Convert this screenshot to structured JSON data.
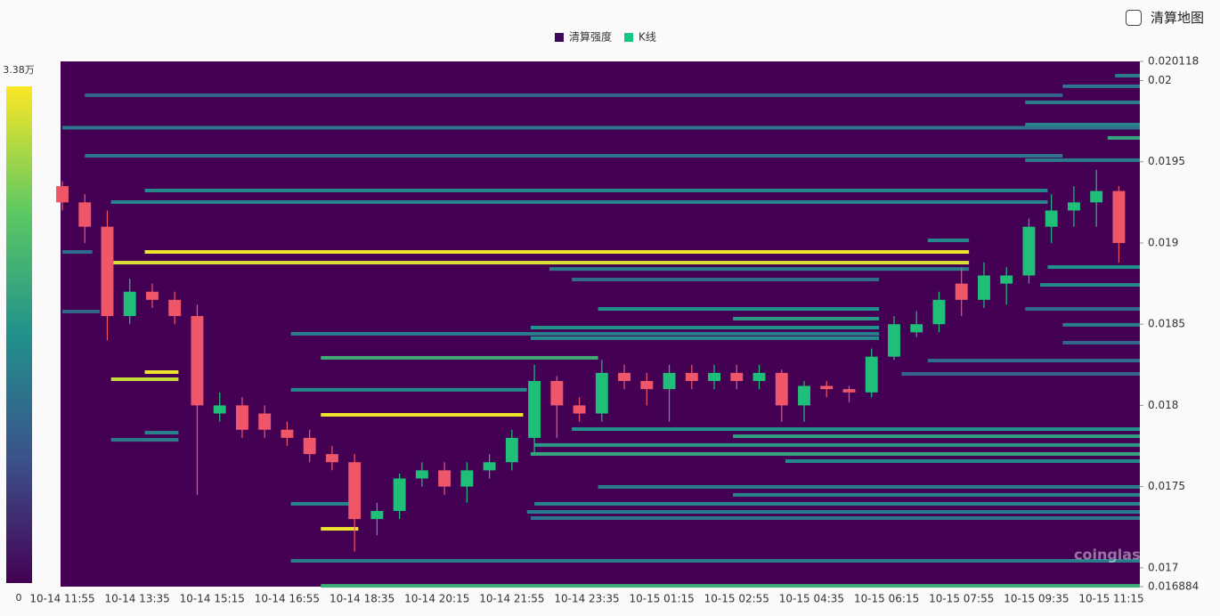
{
  "toggle_label": "清算地图",
  "watermark": "coinglass",
  "chart_data": {
    "type": "liquidation-heatmap",
    "legend": [
      {
        "name": "清算强度",
        "color": "#3d0a5a"
      },
      {
        "name": "K线",
        "color": "#16c784"
      }
    ],
    "up_color": "#1fbf7a",
    "down_color": "#f0566a",
    "colormap": [
      "#440154",
      "#3b528b",
      "#21918c",
      "#5ec962",
      "#fde725"
    ],
    "clim": [
      0,
      33800
    ],
    "cticks": [
      0,
      {
        "value": 33800,
        "label": "3.38万"
      }
    ],
    "ylim": [
      0.016884,
      0.020118
    ],
    "yticks": [
      0.016884,
      0.017,
      0.0175,
      0.018,
      0.0185,
      0.019,
      0.0195,
      0.02,
      0.020118
    ],
    "xticks": [
      "10-14 11:55",
      "10-14 13:35",
      "10-14 15:15",
      "10-14 16:55",
      "10-14 18:35",
      "10-14 20:15",
      "10-14 21:55",
      "10-14 23:35",
      "10-15 01:15",
      "10-15 02:55",
      "10-15 04:35",
      "10-15 06:15",
      "10-15 07:55",
      "10-15 09:35",
      "10-15 11:15"
    ],
    "x": [
      "10-14 11:55",
      "10-14 12:25",
      "10-14 12:55",
      "10-14 13:25",
      "10-14 13:55",
      "10-14 14:25",
      "10-14 14:55",
      "10-14 15:25",
      "10-14 15:55",
      "10-14 16:25",
      "10-14 16:55",
      "10-14 17:25",
      "10-14 17:55",
      "10-14 18:25",
      "10-14 18:55",
      "10-14 19:25",
      "10-14 19:55",
      "10-14 20:25",
      "10-14 20:55",
      "10-14 21:25",
      "10-14 21:55",
      "10-14 22:25",
      "10-14 22:55",
      "10-14 23:25",
      "10-14 23:55",
      "10-15 00:25",
      "10-15 00:55",
      "10-15 01:25",
      "10-15 01:55",
      "10-15 02:25",
      "10-15 02:55",
      "10-15 03:25",
      "10-15 03:55",
      "10-15 04:25",
      "10-15 04:55",
      "10-15 05:25",
      "10-15 05:55",
      "10-15 06:25",
      "10-15 06:55",
      "10-15 07:25",
      "10-15 07:55",
      "10-15 08:25",
      "10-15 08:55",
      "10-15 09:25",
      "10-15 09:55",
      "10-15 10:25",
      "10-15 10:55",
      "10-15 11:25"
    ],
    "open": [
      0.01935,
      0.01925,
      0.0191,
      0.01855,
      0.0187,
      0.01865,
      0.01855,
      0.01795,
      0.018,
      0.01795,
      0.01785,
      0.0178,
      0.0177,
      0.01765,
      0.0173,
      0.01735,
      0.01755,
      0.0176,
      0.0175,
      0.0176,
      0.01765,
      0.0178,
      0.01815,
      0.018,
      0.01795,
      0.0182,
      0.01815,
      0.0181,
      0.0182,
      0.01815,
      0.0182,
      0.01815,
      0.0182,
      0.018,
      0.01812,
      0.0181,
      0.01808,
      0.0183,
      0.01845,
      0.0185,
      0.01875,
      0.01865,
      0.01875,
      0.0188,
      0.0191,
      0.0192,
      0.01925,
      0.01932
    ],
    "high": [
      0.01938,
      0.0193,
      0.0192,
      0.01878,
      0.01875,
      0.0187,
      0.01862,
      0.01808,
      0.01805,
      0.018,
      0.0179,
      0.01785,
      0.01775,
      0.0177,
      0.0174,
      0.01758,
      0.01765,
      0.01765,
      0.01765,
      0.0177,
      0.01785,
      0.01825,
      0.01818,
      0.01805,
      0.01828,
      0.01825,
      0.0182,
      0.01825,
      0.01825,
      0.01825,
      0.01825,
      0.01825,
      0.01822,
      0.01815,
      0.01815,
      0.01812,
      0.01835,
      0.01855,
      0.01858,
      0.0187,
      0.01885,
      0.01888,
      0.01885,
      0.01915,
      0.0193,
      0.01935,
      0.01945,
      0.01935
    ],
    "low": [
      0.0192,
      0.019,
      0.0184,
      0.0185,
      0.0186,
      0.0185,
      0.01745,
      0.0179,
      0.0178,
      0.0178,
      0.01775,
      0.01765,
      0.0176,
      0.0171,
      0.0172,
      0.0173,
      0.0175,
      0.01745,
      0.0174,
      0.01755,
      0.0176,
      0.0177,
      0.0178,
      0.0179,
      0.0179,
      0.0181,
      0.018,
      0.0179,
      0.0181,
      0.0181,
      0.0181,
      0.0181,
      0.0179,
      0.0179,
      0.01805,
      0.01802,
      0.01805,
      0.01828,
      0.01842,
      0.01845,
      0.01855,
      0.0186,
      0.01862,
      0.01875,
      0.019,
      0.0191,
      0.0191,
      0.01888
    ],
    "close": [
      0.01925,
      0.0191,
      0.01855,
      0.0187,
      0.01865,
      0.01855,
      0.018,
      0.018,
      0.01785,
      0.01785,
      0.0178,
      0.0177,
      0.01765,
      0.0173,
      0.01735,
      0.01755,
      0.0176,
      0.0175,
      0.0176,
      0.01765,
      0.0178,
      0.01815,
      0.018,
      0.01795,
      0.0182,
      0.01815,
      0.0181,
      0.0182,
      0.01815,
      0.0182,
      0.01815,
      0.0182,
      0.018,
      0.01812,
      0.0181,
      0.01808,
      0.0183,
      0.0185,
      0.0185,
      0.01865,
      0.01865,
      0.0188,
      0.0188,
      0.0191,
      0.0192,
      0.01925,
      0.01932,
      0.019
    ],
    "bands": [
      {
        "price": 0.01971,
        "start": "10-14 11:55",
        "intensity": 13000
      },
      {
        "price": 0.01991,
        "start": "10-14 12:25",
        "end": "10-15 10:10",
        "intensity": 11000
      },
      {
        "price": 0.019537,
        "start": "10-14 12:25",
        "end": "10-15 10:10",
        "intensity": 13000
      },
      {
        "price": 0.019323,
        "start": "10-14 13:45",
        "end": "10-15 09:50",
        "intensity": 16000
      },
      {
        "price": 0.019252,
        "start": "10-14 13:00",
        "end": "10-15 09:50",
        "intensity": 15000
      },
      {
        "price": 0.018945,
        "start": "10-14 13:45",
        "end": "10-15 08:05",
        "intensity": 33000
      },
      {
        "price": 0.018879,
        "start": "10-14 13:00",
        "end": "10-15 08:05",
        "intensity": 32000
      },
      {
        "price": 0.018945,
        "start": "10-14 11:55",
        "end": "10-14 12:35",
        "intensity": 12000
      },
      {
        "price": 0.018578,
        "start": "10-14 11:55",
        "end": "10-14 12:45",
        "intensity": 11000
      },
      {
        "price": 0.018205,
        "start": "10-14 13:45",
        "end": "10-14 14:30",
        "intensity": 33000
      },
      {
        "price": 0.018161,
        "start": "10-14 13:00",
        "end": "10-14 14:30",
        "intensity": 31000
      },
      {
        "price": 0.017832,
        "start": "10-14 13:45",
        "end": "10-14 14:30",
        "intensity": 15000
      },
      {
        "price": 0.017788,
        "start": "10-14 13:00",
        "end": "10-14 14:30",
        "intensity": 14000
      },
      {
        "price": 0.017942,
        "start": "10-14 17:40",
        "end": "10-14 22:10",
        "intensity": 33000
      },
      {
        "price": 0.01724,
        "start": "10-14 17:40",
        "end": "10-14 18:30",
        "intensity": 33000
      },
      {
        "price": 0.018293,
        "start": "10-14 17:40",
        "end": "10-14 23:50",
        "intensity": 21000
      },
      {
        "price": 0.018096,
        "start": "10-14 17:00",
        "end": "10-14 22:15",
        "intensity": 16000
      },
      {
        "price": 0.017394,
        "start": "10-14 17:00",
        "end": "10-14 18:30",
        "intensity": 15000
      },
      {
        "price": 0.017043,
        "start": "10-14 17:00",
        "intensity": 14000
      },
      {
        "price": 0.016889,
        "start": "10-14 17:40",
        "intensity": 21000
      },
      {
        "price": 0.018441,
        "start": "10-14 17:00",
        "end": "10-15 06:05",
        "intensity": 14000
      },
      {
        "price": 0.018594,
        "start": "10-14 23:50",
        "end": "10-15 06:05",
        "intensity": 17000
      },
      {
        "price": 0.018534,
        "start": "10-15 02:50",
        "end": "10-15 06:05",
        "intensity": 18000
      },
      {
        "price": 0.018479,
        "start": "10-14 22:20",
        "end": "10-15 06:05",
        "intensity": 17000
      },
      {
        "price": 0.018414,
        "start": "10-14 22:20",
        "end": "10-15 06:05",
        "intensity": 16000
      },
      {
        "price": 0.01884,
        "start": "10-14 22:45",
        "end": "10-15 08:05",
        "intensity": 14000
      },
      {
        "price": 0.018775,
        "start": "10-14 23:15",
        "end": "10-15 06:05",
        "intensity": 12000
      },
      {
        "price": 0.017854,
        "start": "10-14 23:15",
        "intensity": 17000
      },
      {
        "price": 0.01781,
        "start": "10-15 02:50",
        "intensity": 19000
      },
      {
        "price": 0.017756,
        "start": "10-14 22:25",
        "intensity": 18000
      },
      {
        "price": 0.017701,
        "start": "10-14 22:20",
        "intensity": 20000
      },
      {
        "price": 0.017657,
        "start": "10-15 04:00",
        "intensity": 16000
      },
      {
        "price": 0.017498,
        "start": "10-14 23:50",
        "intensity": 14000
      },
      {
        "price": 0.017449,
        "start": "10-15 02:50",
        "intensity": 15000
      },
      {
        "price": 0.017394,
        "start": "10-14 22:25",
        "intensity": 15000
      },
      {
        "price": 0.017344,
        "start": "10-14 22:15",
        "intensity": 14000
      },
      {
        "price": 0.017306,
        "start": "10-14 22:20",
        "intensity": 13000
      },
      {
        "price": 0.02003,
        "start": "10-15 11:20",
        "intensity": 14000
      },
      {
        "price": 0.019965,
        "start": "10-15 10:10",
        "intensity": 13000
      },
      {
        "price": 0.019866,
        "start": "10-15 09:20",
        "intensity": 14000
      },
      {
        "price": 0.019729,
        "start": "10-15 09:20",
        "intensity": 15000
      },
      {
        "price": 0.019647,
        "start": "10-15 11:10",
        "intensity": 20000
      },
      {
        "price": 0.01951,
        "start": "10-15 09:20",
        "intensity": 14000
      },
      {
        "price": 0.019016,
        "start": "10-15 07:10",
        "end": "10-15 08:05",
        "intensity": 16000
      },
      {
        "price": 0.018852,
        "start": "10-15 09:50",
        "intensity": 17000
      },
      {
        "price": 0.018742,
        "start": "10-15 09:40",
        "intensity": 16000
      },
      {
        "price": 0.018594,
        "start": "10-15 09:20",
        "intensity": 12000
      },
      {
        "price": 0.018496,
        "start": "10-15 10:10",
        "intensity": 14000
      },
      {
        "price": 0.018386,
        "start": "10-15 10:10",
        "intensity": 11000
      },
      {
        "price": 0.018276,
        "start": "10-15 07:10",
        "intensity": 12000
      },
      {
        "price": 0.018194,
        "start": "10-15 06:35",
        "intensity": 11000
      }
    ]
  }
}
